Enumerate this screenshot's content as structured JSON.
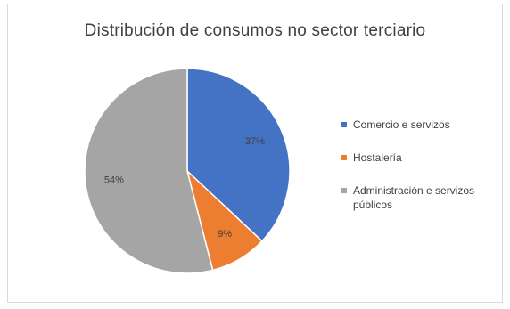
{
  "chart_data": {
    "type": "pie",
    "title": "Distribución de consumos no sector terciario",
    "categories": [
      "Comercio e servizos",
      "Hostalería",
      "Administración e servizos públicos"
    ],
    "values": [
      37,
      9,
      54
    ],
    "data_labels": [
      "37%",
      "9%",
      "54%"
    ],
    "colors": [
      "#4472c4",
      "#ed7d31",
      "#a5a5a5"
    ],
    "legend": "right",
    "start_angle_deg": 0,
    "direction": "clockwise"
  }
}
